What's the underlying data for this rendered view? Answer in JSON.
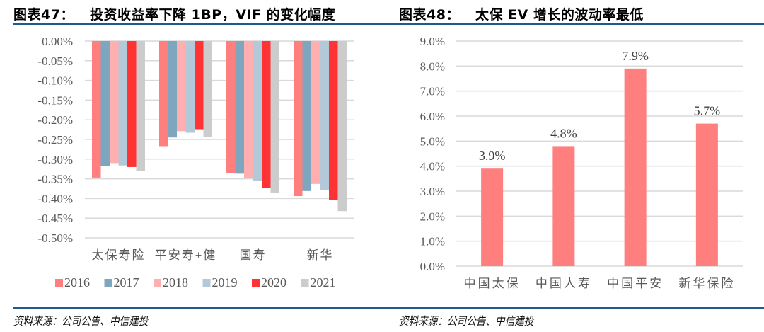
{
  "left": {
    "title_num": "图表47：",
    "title_text": "投资收益率下降 1BP，VIF 的变化幅度",
    "source": "资料来源：公司公告、中信建投"
  },
  "right": {
    "title_num": "图表48：",
    "title_text": "太保 EV 增长的波动率最低",
    "source": "资料来源：公司公告、中信建投"
  },
  "chart_data": [
    {
      "type": "bar",
      "title": "投资收益率下降 1BP，VIF 的变化幅度",
      "xlabel": "",
      "ylabel": "",
      "categories": [
        "太保寿险",
        "平安寿+健",
        "国寿",
        "新华"
      ],
      "ylim": [
        -0.5,
        0.0
      ],
      "yticks": [
        "0.00%",
        "-0.05%",
        "-0.10%",
        "-0.15%",
        "-0.20%",
        "-0.25%",
        "-0.30%",
        "-0.35%",
        "-0.40%",
        "-0.45%",
        "-0.50%"
      ],
      "ytick_values": [
        0,
        -0.05,
        -0.1,
        -0.15,
        -0.2,
        -0.25,
        -0.3,
        -0.35,
        -0.4,
        -0.45,
        -0.5
      ],
      "grid": true,
      "legend_position": "bottom",
      "series": [
        {
          "name": "2016",
          "color": "#ff7f7f",
          "values": [
            -0.347,
            -0.267,
            -0.335,
            -0.394
          ]
        },
        {
          "name": "2017",
          "color": "#7fa6bf",
          "values": [
            -0.318,
            -0.245,
            -0.337,
            -0.381
          ]
        },
        {
          "name": "2018",
          "color": "#ffafaf",
          "values": [
            -0.31,
            -0.229,
            -0.348,
            -0.363
          ]
        },
        {
          "name": "2019",
          "color": "#b3c9d9",
          "values": [
            -0.316,
            -0.233,
            -0.356,
            -0.379
          ]
        },
        {
          "name": "2020",
          "color": "#ff3333",
          "values": [
            -0.32,
            -0.224,
            -0.374,
            -0.403
          ]
        },
        {
          "name": "2021",
          "color": "#cccccc",
          "values": [
            -0.33,
            -0.243,
            -0.385,
            -0.432
          ]
        }
      ]
    },
    {
      "type": "bar",
      "title": "太保 EV 增长的波动率最低",
      "xlabel": "",
      "ylabel": "",
      "categories": [
        "中国太保",
        "中国人寿",
        "中国平安",
        "新华保险"
      ],
      "values": [
        3.9,
        4.8,
        7.9,
        5.7
      ],
      "data_labels": [
        "3.9%",
        "4.8%",
        "7.9%",
        "5.7%"
      ],
      "color": "#ff7f7f",
      "ylim": [
        0,
        9.0
      ],
      "yticks": [
        "0.0%",
        "1.0%",
        "2.0%",
        "3.0%",
        "4.0%",
        "5.0%",
        "6.0%",
        "7.0%",
        "8.0%",
        "9.0%"
      ],
      "ytick_values": [
        0,
        1,
        2,
        3,
        4,
        5,
        6,
        7,
        8,
        9
      ],
      "grid": true
    }
  ]
}
